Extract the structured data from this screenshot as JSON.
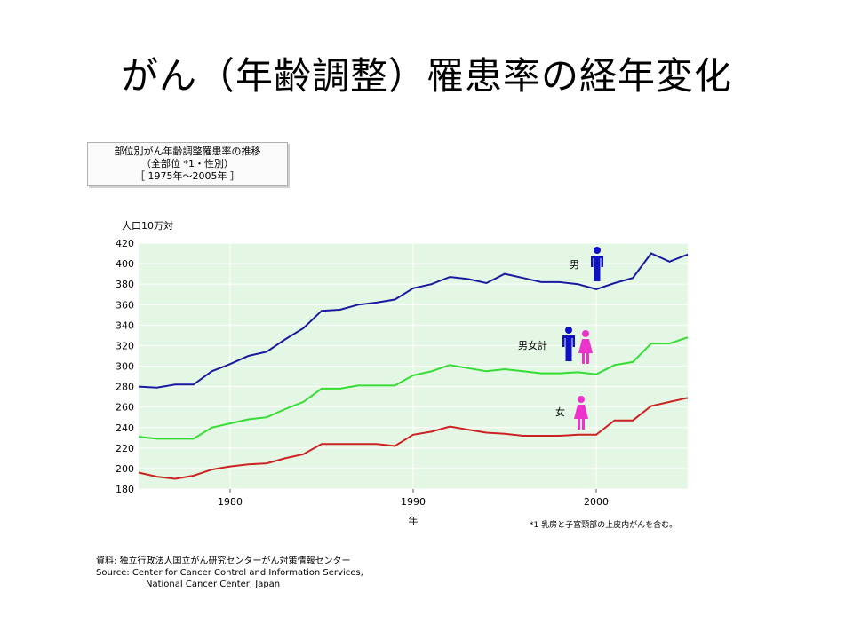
{
  "slide": {
    "title": "がん（年齢調整）罹患率の経年変化"
  },
  "caption": {
    "line1": "部位別がん年齢調整罹患率の推移",
    "line2": "（全部位 *1・性別）",
    "line3": "［ 1975年〜2005年 ］"
  },
  "source": {
    "line1": "資料:  独立行政法人国立がん研究センターがん対策情報センター",
    "line2": "Source:  Center for Cancer Control and Information Services,",
    "line3": "National Cancer Center, Japan"
  },
  "footnote": "*1 乳房と子宮頸部の上皮内がんを含む。",
  "chart_data": {
    "type": "line",
    "ylabel": "人口10万対",
    "xlabel": "年",
    "xlim": [
      1975,
      2005
    ],
    "ylim": [
      180,
      420
    ],
    "x_ticks": [
      1980,
      1990,
      2000
    ],
    "y_ticks": [
      180,
      200,
      220,
      240,
      260,
      280,
      300,
      320,
      340,
      360,
      380,
      400,
      420
    ],
    "grid": true,
    "background": "#e4f6e4",
    "x": [
      1975,
      1976,
      1977,
      1978,
      1979,
      1980,
      1981,
      1982,
      1983,
      1984,
      1985,
      1986,
      1987,
      1988,
      1989,
      1990,
      1991,
      1992,
      1993,
      1994,
      1995,
      1996,
      1997,
      1998,
      1999,
      2000,
      2001,
      2002,
      2003,
      2004,
      2005
    ],
    "series": [
      {
        "name": "男",
        "color": "#1a1aa0",
        "icon": "male-figure-icon",
        "values": [
          280,
          279,
          282,
          282,
          295,
          302,
          310,
          314,
          326,
          337,
          354,
          355,
          360,
          362,
          365,
          376,
          380,
          387,
          385,
          381,
          390,
          386,
          382,
          382,
          380,
          375,
          381,
          386,
          410,
          402,
          409
        ]
      },
      {
        "name": "男女計",
        "color": "#33dd33",
        "icon": "male-female-figures-icon",
        "values": [
          231,
          229,
          229,
          229,
          240,
          244,
          248,
          250,
          258,
          265,
          278,
          278,
          281,
          281,
          281,
          291,
          295,
          301,
          298,
          295,
          297,
          295,
          293,
          293,
          294,
          292,
          301,
          304,
          322,
          322,
          328
        ]
      },
      {
        "name": "女",
        "color": "#cc2222",
        "icon": "female-figure-icon",
        "values": [
          196,
          192,
          190,
          193,
          199,
          202,
          204,
          205,
          210,
          214,
          224,
          224,
          224,
          224,
          222,
          233,
          236,
          241,
          238,
          235,
          234,
          232,
          232,
          232,
          233,
          233,
          247,
          247,
          261,
          265,
          269
        ]
      }
    ]
  }
}
